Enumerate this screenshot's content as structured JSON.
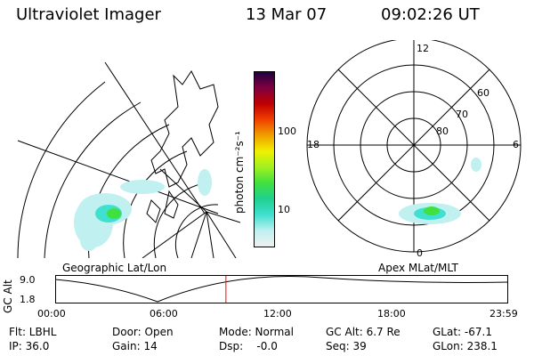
{
  "header": {
    "instrument": "Ultraviolet Imager",
    "date": "13 Mar 07",
    "time": "09:02:26 UT"
  },
  "colorbar": {
    "unit_label": "photon cm⁻²s⁻¹",
    "ticks": [
      "100",
      "10"
    ],
    "colors": [
      "#f0f0f0",
      "#c0f0f0",
      "#40e0d0",
      "#20d090",
      "#40e040",
      "#a0f020",
      "#f0f000",
      "#f0a000",
      "#f04000",
      "#c00000",
      "#800040",
      "#200040"
    ]
  },
  "geo_panel": {
    "caption": "Geographic Lat/Lon"
  },
  "mlt_panel": {
    "caption": "Apex MLat/MLT",
    "mlt_labels": {
      "top": "12",
      "bottom": "0",
      "left": "18",
      "right": "6"
    },
    "lat_labels": [
      "60",
      "70",
      "80"
    ]
  },
  "altitude_plot": {
    "ylabel": "GC Alt",
    "yticks": [
      "9.0",
      "1.8"
    ],
    "xticks": [
      "00:00",
      "06:00",
      "12:00",
      "18:00",
      "23:59"
    ],
    "marker_color": "#ff0000",
    "marker_time_hours": 9.04
  },
  "info": {
    "row1": {
      "flt": "Flt: LBHL",
      "door": "Door: Open",
      "mode": "Mode: Normal",
      "gcalt": "GC Alt: 6.7 Re",
      "glat": "GLat: -67.1"
    },
    "row2": {
      "ip": "IP: 36.0",
      "gain": "Gain: 14",
      "dsp": "Dsp:    -0.0",
      "seq": "Seq: 39",
      "glon": "GLon: 238.1"
    }
  }
}
